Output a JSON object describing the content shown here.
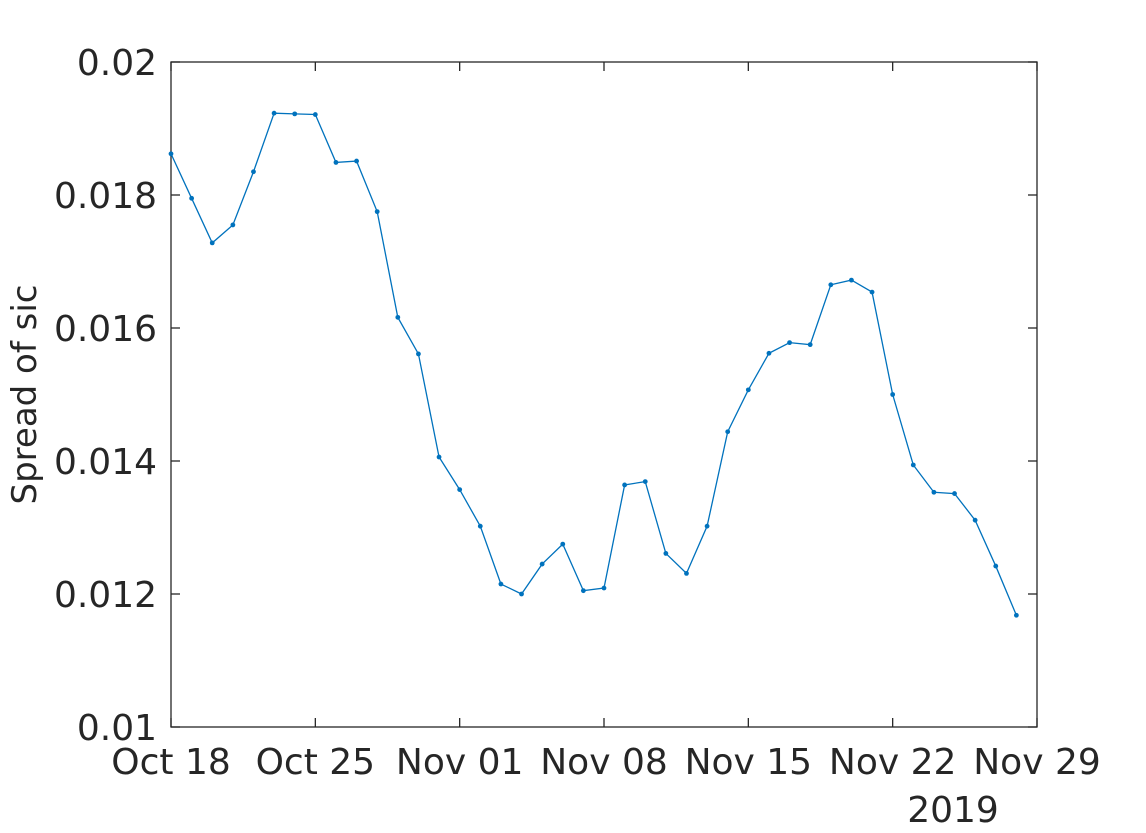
{
  "chart_data": {
    "type": "line",
    "title": "",
    "xlabel": "",
    "ylabel": "Spread of sic",
    "x_secondary_label": "2019",
    "x_start": "2019-10-18",
    "x_end": "2019-11-29",
    "x_ticks": [
      "2019-10-18",
      "2019-10-25",
      "2019-11-01",
      "2019-11-08",
      "2019-11-15",
      "2019-11-22",
      "2019-11-29"
    ],
    "x_tick_labels": [
      "Oct 18",
      "Oct 25",
      "Nov 01",
      "Nov 08",
      "Nov 15",
      "Nov 22",
      "Nov 29"
    ],
    "ylim": [
      0.01,
      0.02
    ],
    "y_ticks": [
      0.01,
      0.012,
      0.014,
      0.016,
      0.018,
      0.02
    ],
    "y_tick_labels": [
      "0.01",
      "0.012",
      "0.014",
      "0.016",
      "0.018",
      "0.02"
    ],
    "grid": false,
    "series": [
      {
        "color": "#0072BD",
        "marker": "point",
        "x": [
          "2019-10-18",
          "2019-10-19",
          "2019-10-20",
          "2019-10-21",
          "2019-10-22",
          "2019-10-23",
          "2019-10-24",
          "2019-10-25",
          "2019-10-26",
          "2019-10-27",
          "2019-10-28",
          "2019-10-29",
          "2019-10-30",
          "2019-10-31",
          "2019-11-01",
          "2019-11-02",
          "2019-11-03",
          "2019-11-04",
          "2019-11-05",
          "2019-11-06",
          "2019-11-07",
          "2019-11-08",
          "2019-11-09",
          "2019-11-10",
          "2019-11-11",
          "2019-11-12",
          "2019-11-13",
          "2019-11-14",
          "2019-11-15",
          "2019-11-16",
          "2019-11-17",
          "2019-11-18",
          "2019-11-19",
          "2019-11-20",
          "2019-11-21",
          "2019-11-22",
          "2019-11-23",
          "2019-11-24",
          "2019-11-25",
          "2019-11-26",
          "2019-11-27",
          "2019-11-28"
        ],
        "y": [
          0.01862,
          0.01795,
          0.01728,
          0.01755,
          0.01835,
          0.01923,
          0.01922,
          0.01921,
          0.01849,
          0.01851,
          0.01775,
          0.01616,
          0.01561,
          0.01406,
          0.01357,
          0.01302,
          0.01215,
          0.012,
          0.01245,
          0.01275,
          0.01205,
          0.01209,
          0.01364,
          0.01369,
          0.01261,
          0.01231,
          0.01302,
          0.01444,
          0.01507,
          0.01562,
          0.01578,
          0.01575,
          0.01665,
          0.01672,
          0.01654,
          0.015,
          0.01394,
          0.01353,
          0.01351,
          0.01311,
          0.01242,
          0.01168
        ]
      }
    ]
  }
}
